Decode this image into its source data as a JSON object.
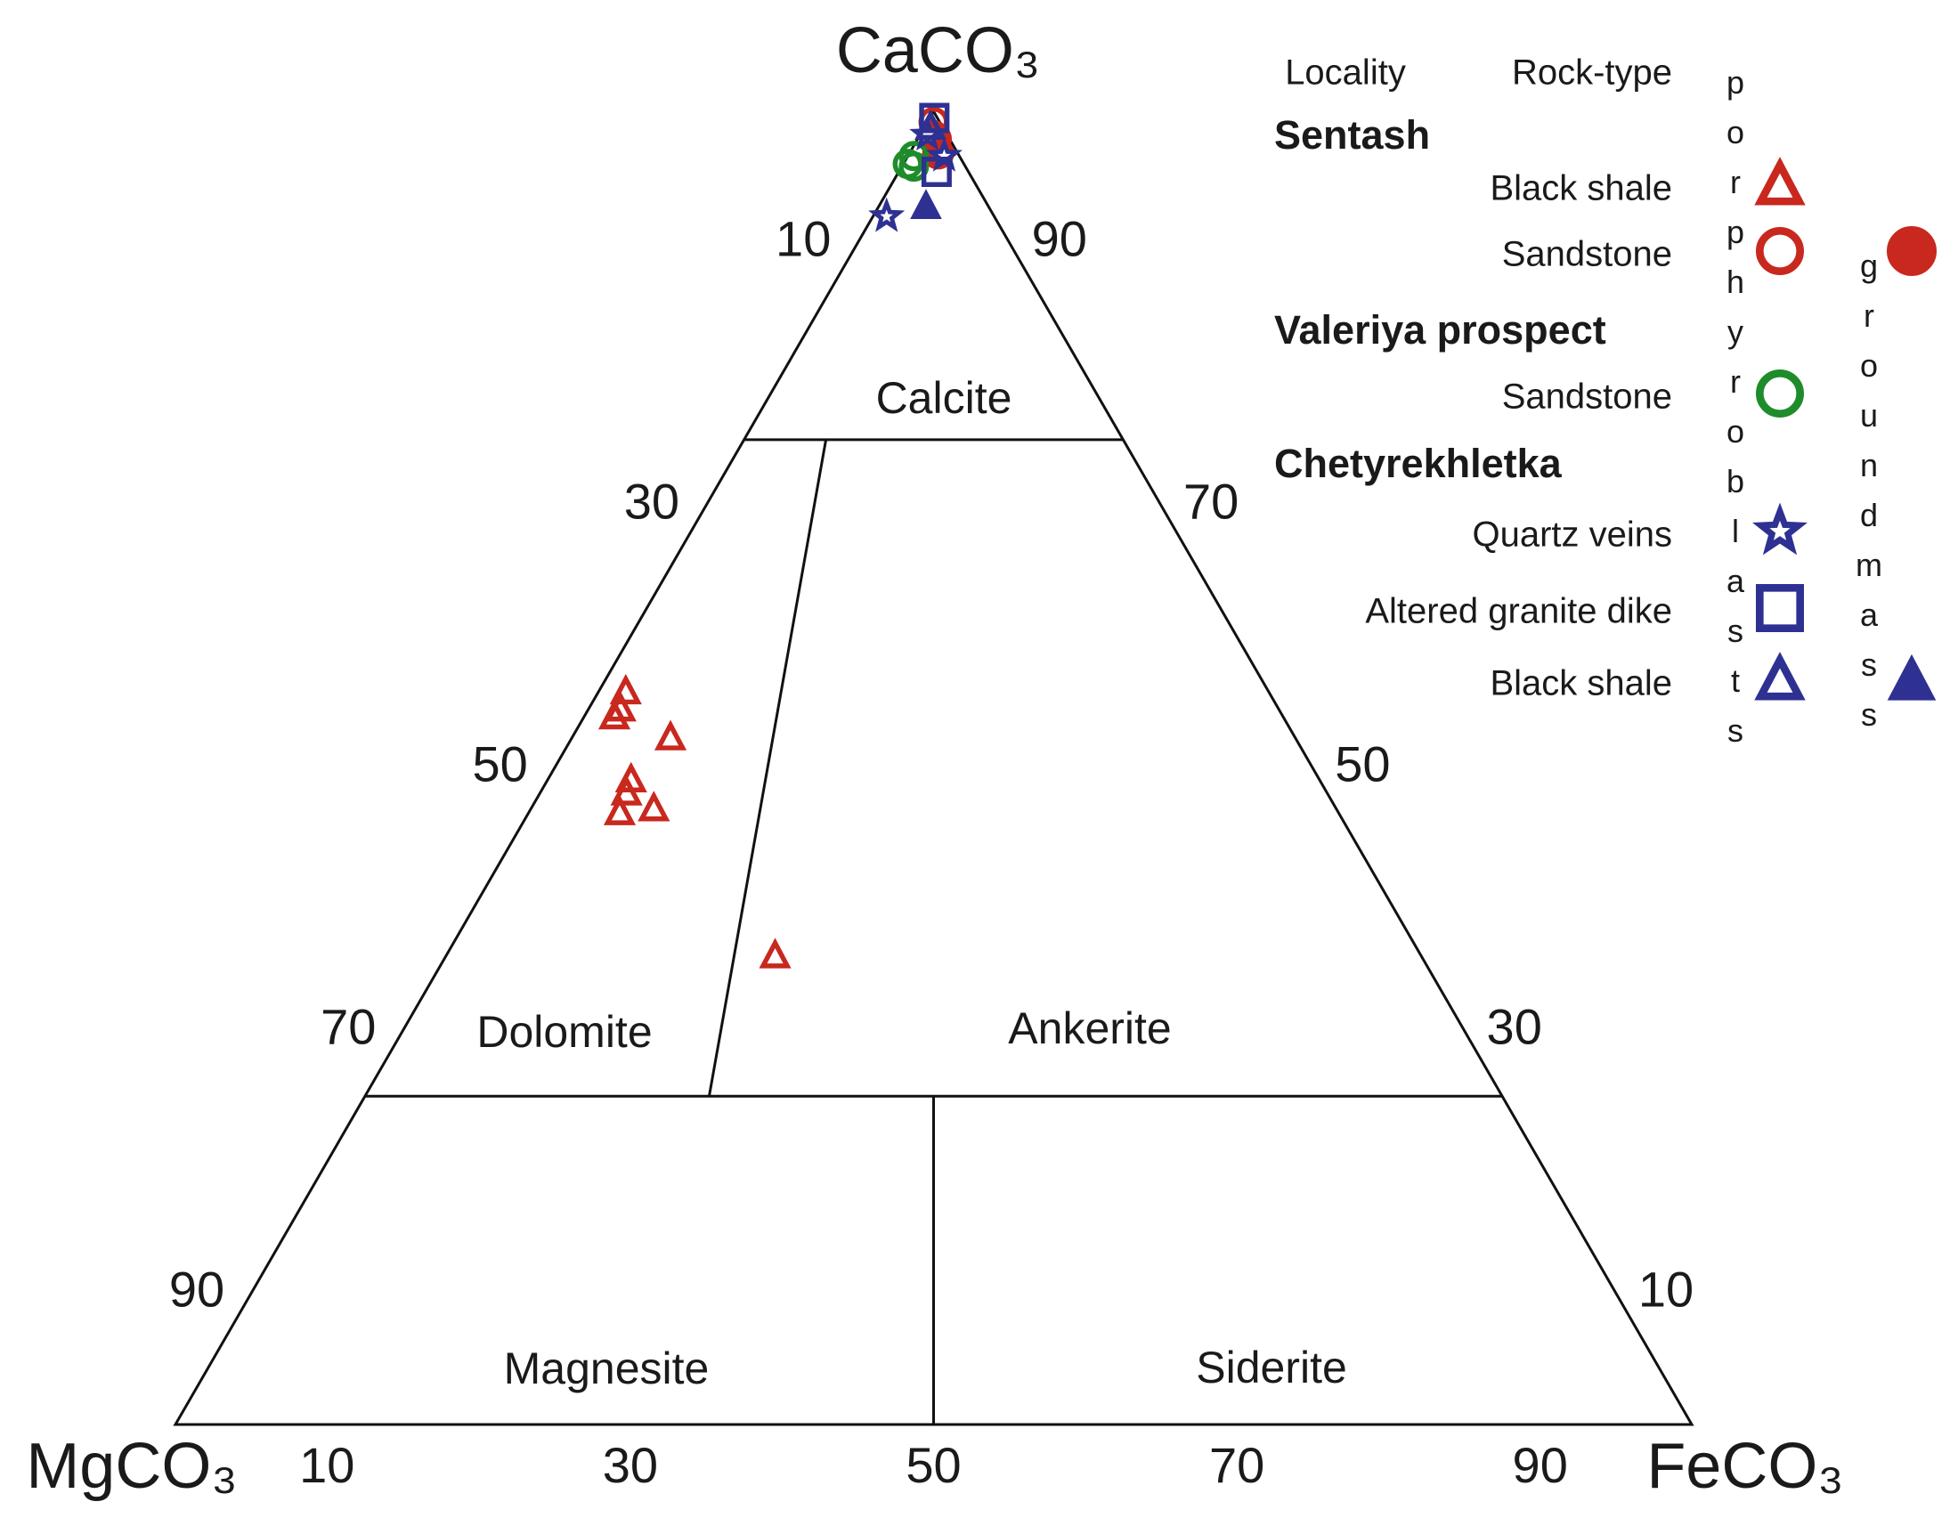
{
  "chart_data": {
    "type": "ternary",
    "apex_labels": {
      "top": "CaCO₃",
      "left": "MgCO₃",
      "right": "FeCO₃"
    },
    "ticks": {
      "mg": [
        10,
        30,
        50,
        70,
        90
      ],
      "ca": [
        10,
        30,
        50,
        70,
        90
      ],
      "fe": [
        10,
        30,
        50,
        70,
        90
      ]
    },
    "fields": [
      "Calcite",
      "Dolomite",
      "Ankerite",
      "Magnesite",
      "Siderite"
    ],
    "legend": {
      "locality_header": "Locality",
      "rock_type_header": "Rock-type",
      "textures": [
        "porphyroblasts",
        "groundmass"
      ]
    },
    "localities": [
      {
        "name": "Sentash",
        "rock_types": [
          {
            "name": "Black shale",
            "porphyroblasts": {
              "marker": "triangle",
              "color": "#c8281e",
              "filled": false,
              "ca": [
                55.8,
                54.5,
                53.9,
                52.3,
                49.1,
                48.1,
                46.6,
                46.9,
                35.7
              ],
              "mg": [
                42.4,
                43.4,
                44.1,
                41.2,
                45.4,
                46.2,
                47.4,
                45.0,
                42.6
              ],
              "fe": [
                1.8,
                2.1,
                2.0,
                6.5,
                5.5,
                5.7,
                6.0,
                8.1,
                21.7
              ]
            }
          },
          {
            "name": "Sandstone",
            "porphyroblasts": {
              "marker": "circle",
              "color": "#c8281e",
              "filled": false,
              "ca": [
                99.2,
                98.2
              ],
              "mg": [
                0.4,
                0.9
              ],
              "fe": [
                0.4,
                0.9
              ]
            },
            "groundmass": {
              "marker": "circle",
              "color": "#c8281e",
              "filled": true,
              "ca": [
                97.9,
                96.8
              ],
              "mg": [
                0.9,
                1.3
              ],
              "fe": [
                1.2,
                1.9
              ]
            }
          }
        ]
      },
      {
        "name": "Valeriya prospect",
        "rock_types": [
          {
            "name": "Sandstone",
            "porphyroblasts": {
              "marker": "circle",
              "color": "#1e8c2a",
              "filled": false,
              "ca": [
                96.0,
                96.6,
                95.8
              ],
              "mg": [
                3.7,
                3.0,
                3.4
              ],
              "fe": [
                0.3,
                0.4,
                0.8
              ]
            }
          }
        ]
      },
      {
        "name": "Chetyrekhletka",
        "rock_types": [
          {
            "name": "Quartz veins",
            "porphyroblasts": {
              "marker": "star",
              "color": "#2e3192",
              "filled": true,
              "ca": [
                92.0,
                96.6,
                98.2
              ],
              "mg": [
                7.1,
                1.0,
                1.3
              ],
              "fe": [
                0.9,
                2.4,
                0.5
              ]
            }
          },
          {
            "name": "Altered granite dike",
            "porphyroblasts": {
              "marker": "square",
              "color": "#2e3192",
              "filled": false,
              "ca": [
                99.5,
                95.4
              ],
              "mg": [
                0.2,
                2.1
              ],
              "fe": [
                0.3,
                2.5
              ]
            }
          },
          {
            "name": "Black shale",
            "porphyroblasts": {
              "marker": "triangle",
              "color": "#2e3192",
              "filled": false,
              "ca": [
                98.8
              ],
              "mg": [
                0.8
              ],
              "fe": [
                0.4
              ]
            },
            "groundmass": {
              "marker": "triangle",
              "color": "#2e3192",
              "filled": true,
              "ca": [
                92.8
              ],
              "mg": [
                4.1
              ],
              "fe": [
                3.1
              ]
            }
          }
        ]
      }
    ]
  }
}
